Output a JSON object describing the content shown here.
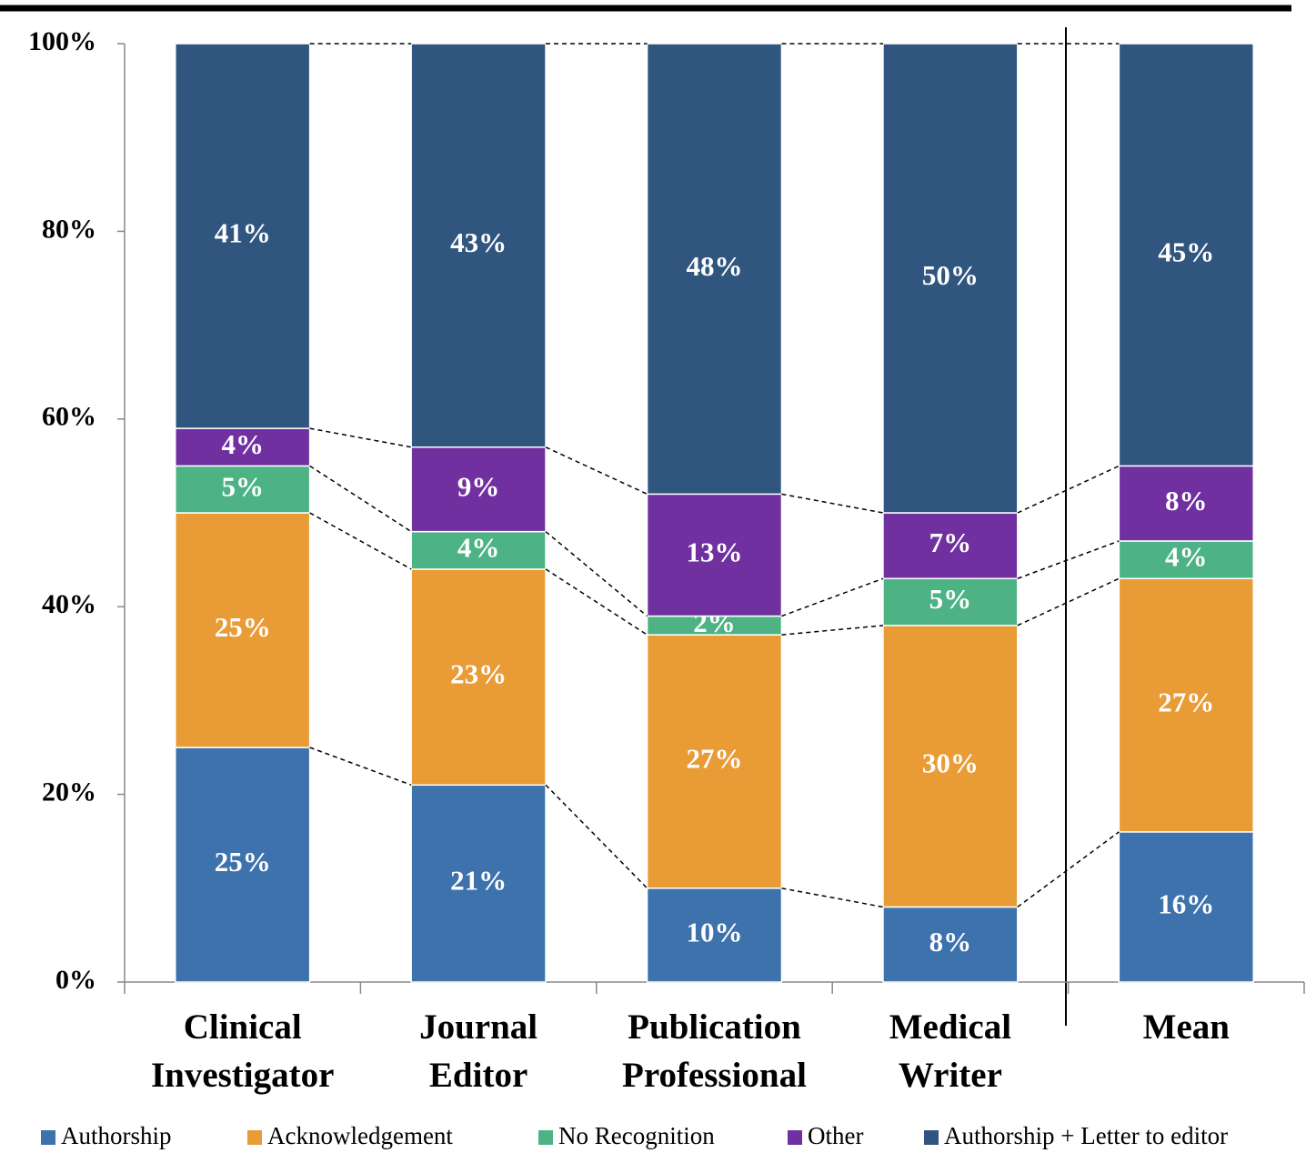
{
  "chart_data": {
    "type": "stacked_bar",
    "categories": [
      "Clinical Investigator",
      "Journal Editor",
      "Publication Professional",
      "Medical Writer",
      "Mean"
    ],
    "series": [
      {
        "name": "Authorship",
        "color": "#3d72ad",
        "values": [
          25,
          21,
          10,
          8,
          16
        ],
        "value_labels": [
          "25%",
          "21%",
          "10%",
          "8%",
          "16%"
        ]
      },
      {
        "name": "Acknowledgement",
        "color": "#e99b35",
        "values": [
          25,
          23,
          27,
          30,
          27
        ],
        "value_labels": [
          "25%",
          "23%",
          "27%",
          "30%",
          "27%"
        ]
      },
      {
        "name": "No Recognition",
        "color": "#4db384",
        "values": [
          5,
          4,
          2,
          5,
          4
        ],
        "value_labels": [
          "5%",
          "4%",
          "2%",
          "5%",
          "4%"
        ]
      },
      {
        "name": "Other",
        "color": "#7030a0",
        "values": [
          4,
          9,
          13,
          7,
          8
        ],
        "value_labels": [
          "4%",
          "9%",
          "13%",
          "7%",
          "8%"
        ]
      },
      {
        "name": "Authorship + Letter to editor",
        "color": "#30567f",
        "values": [
          41,
          43,
          48,
          50,
          45
        ],
        "value_labels": [
          "41%",
          "43%",
          "48%",
          "50%",
          "45%"
        ]
      }
    ],
    "ylim": [
      0,
      100
    ],
    "yticks": [
      {
        "value": 0,
        "label": "0%"
      },
      {
        "value": 20,
        "label": "20%"
      },
      {
        "value": 40,
        "label": "40%"
      },
      {
        "value": 60,
        "label": "60%"
      },
      {
        "value": 80,
        "label": "80%"
      },
      {
        "value": 100,
        "label": "100%"
      }
    ],
    "legend": "bottom"
  }
}
